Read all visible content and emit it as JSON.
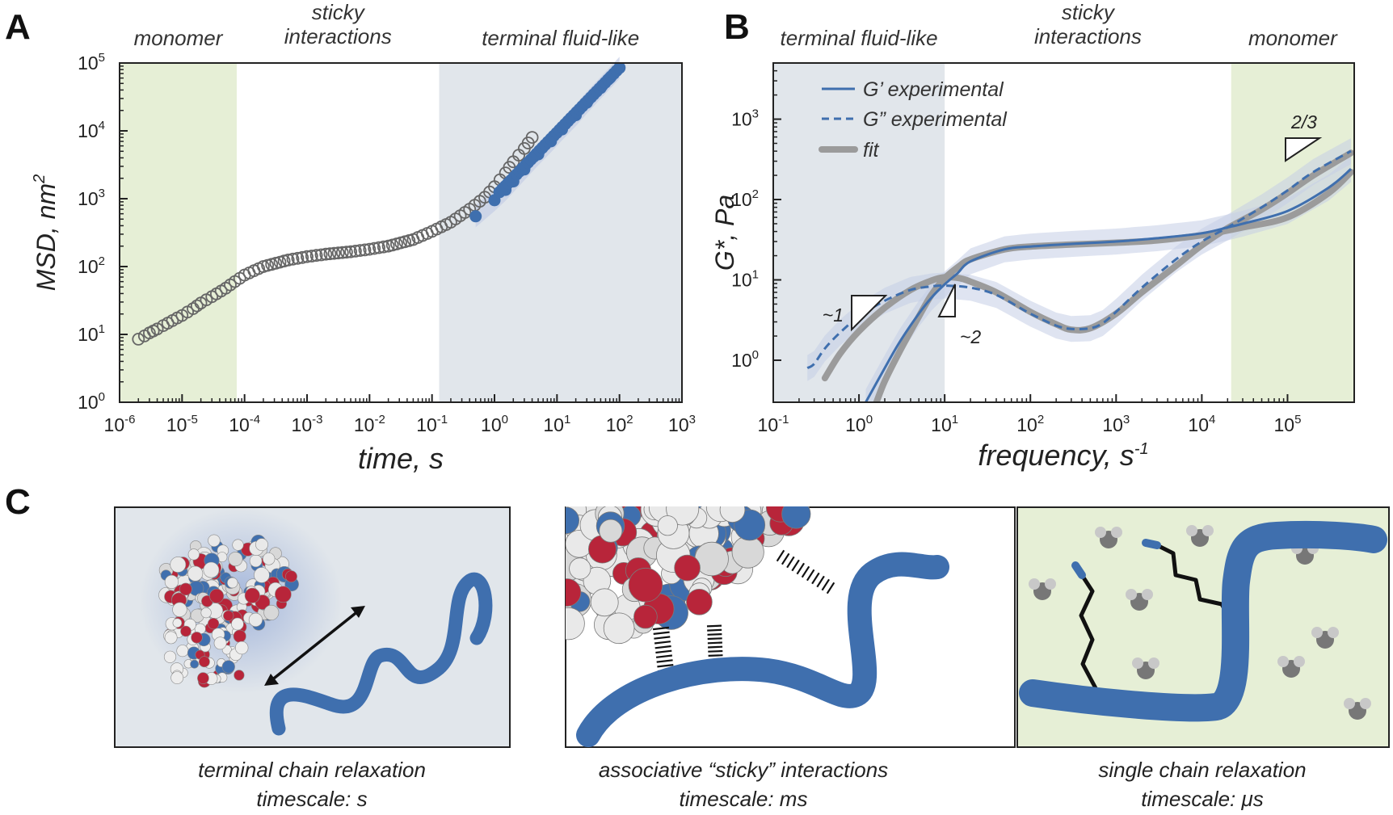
{
  "panels": {
    "a": "A",
    "b": "B",
    "c": "C"
  },
  "colors": {
    "green_region": "#e6efd6",
    "blue_region": "#e1e6eb",
    "gray_marker": "#666666",
    "blue_series": "#3f6fae",
    "fit_gray": "#9b9b9b",
    "band_blue": "#c5cde6",
    "red_protein": "#b8253a"
  },
  "chart_data": [
    {
      "id": "A",
      "type": "scatter",
      "xscale": "log",
      "yscale": "log",
      "xlabel": "time, s",
      "ylabel": "MSD, nm",
      "ylabel_sup": "2",
      "xlim": [
        1e-06,
        1000
      ],
      "ylim": [
        1,
        100000
      ],
      "xtick_exponents": [
        "-6",
        "-5",
        "-4",
        "-3",
        "-2",
        "-1",
        "0",
        "1",
        "2",
        "3"
      ],
      "ytick_exponents": [
        "0",
        "1",
        "2",
        "3",
        "4",
        "5"
      ],
      "tick_base": "10",
      "regions": [
        {
          "label": "monomer",
          "from": 1e-06,
          "to": 7.5e-05,
          "color": "green"
        },
        {
          "label": "sticky\ninteractions",
          "from": 7.5e-05,
          "to": 0.13,
          "color": "none"
        },
        {
          "label": "terminal fluid-like",
          "from": 0.13,
          "to": 1000,
          "color": "blue"
        }
      ],
      "series": [
        {
          "name": "gray open circles",
          "x": [
            2e-06,
            2.5e-06,
            3e-06,
            4e-06,
            5e-06,
            7e-06,
            1e-05,
            1.5e-05,
            2e-05,
            3e-05,
            5e-05,
            7e-05,
            0.0001,
            0.0002,
            0.0005,
            0.001,
            0.002,
            0.005,
            0.01,
            0.02,
            0.05,
            0.1,
            0.2,
            0.4,
            0.7,
            1,
            1.5,
            2,
            3,
            4
          ],
          "y": [
            8.5,
            9.5,
            10.5,
            12,
            13.5,
            16,
            19,
            24,
            29,
            36,
            48,
            60,
            75,
            100,
            125,
            140,
            152,
            165,
            180,
            200,
            250,
            330,
            450,
            700,
            1050,
            1500,
            2400,
            3500,
            5500,
            8000
          ]
        },
        {
          "name": "blue filled circles",
          "x": [
            0.5,
            1,
            1.5,
            2,
            3,
            5,
            8,
            12,
            20,
            30,
            50,
            70,
            100
          ],
          "y": [
            550,
            950,
            1350,
            1800,
            2700,
            4500,
            7000,
            10500,
            17000,
            26000,
            43000,
            60000,
            85000
          ]
        }
      ]
    },
    {
      "id": "B",
      "type": "line",
      "xscale": "log",
      "yscale": "log",
      "xlabel": "frequency, s",
      "xlabel_sup": "-1",
      "ylabel": "G*, Pa",
      "xlim": [
        0.1,
        600000
      ],
      "ylim": [
        0.3,
        5000
      ],
      "xtick_exponents": [
        "-1",
        "0",
        "1",
        "2",
        "3",
        "4",
        "5"
      ],
      "ytick_exponents": [
        "0",
        "1",
        "2",
        "3"
      ],
      "tick_base": "10",
      "regions": [
        {
          "label": "terminal fluid-like",
          "from": 0.1,
          "to": 10,
          "color": "blue"
        },
        {
          "label": "sticky\ninteractions",
          "from": 10,
          "to": 22000,
          "color": "none"
        },
        {
          "label": "monomer",
          "from": 22000,
          "to": 600000,
          "color": "green"
        }
      ],
      "legend": [
        {
          "label": "G’ experimental",
          "style": "solid-blue"
        },
        {
          "label": "G” experimental",
          "style": "dashed-blue"
        },
        {
          "label": "fit",
          "style": "thick-gray"
        }
      ],
      "series": [
        {
          "name": "G’ experimental",
          "x": [
            1.2,
            2,
            3,
            5,
            7,
            10,
            14,
            20,
            50,
            100,
            300,
            1000,
            3000,
            10000,
            20000,
            30000,
            100000,
            300000,
            550000
          ],
          "y": [
            0.3,
            0.8,
            1.7,
            3.8,
            6,
            8.8,
            12,
            17,
            24,
            26,
            28,
            30,
            33,
            38,
            45,
            50,
            72,
            140,
            240
          ]
        },
        {
          "name": "G” experimental",
          "x": [
            0.25,
            0.3,
            0.4,
            0.6,
            1,
            2,
            4,
            7,
            10,
            20,
            40,
            100,
            200,
            300,
            500,
            700,
            1000,
            2000,
            5000,
            10000,
            20000,
            50000,
            100000,
            200000,
            550000
          ],
          "y": [
            0.8,
            0.9,
            1.4,
            2.2,
            3.5,
            5.5,
            7.5,
            8.3,
            8.5,
            8,
            6.5,
            3.8,
            2.7,
            2.45,
            2.5,
            2.9,
            4,
            8,
            18,
            30,
            45,
            80,
            130,
            220,
            400
          ]
        },
        {
          "name": "fit G’",
          "x": [
            1.6,
            2,
            3,
            5,
            7,
            10,
            15,
            20,
            50,
            100,
            300,
            1000,
            3000,
            10000,
            30000,
            100000,
            300000,
            550000
          ],
          "y": [
            0.3,
            0.55,
            1.3,
            3.5,
            6.5,
            10.5,
            15,
            18,
            24,
            26,
            27.5,
            29,
            31,
            36,
            45,
            60,
            120,
            220
          ]
        },
        {
          "name": "fit G”",
          "x": [
            0.4,
            0.6,
            1,
            2,
            4,
            7,
            10,
            15,
            20,
            40,
            100,
            200,
            300,
            500,
            1000,
            2000,
            5000,
            10000,
            20000,
            50000,
            100000,
            200000,
            550000
          ],
          "y": [
            0.6,
            1.2,
            2.3,
            4.5,
            7.5,
            9.8,
            10.8,
            10.5,
            9.5,
            7,
            4,
            2.8,
            2.4,
            2.5,
            3.8,
            7,
            15,
            27,
            44,
            75,
            120,
            200,
            380
          ]
        }
      ],
      "slope_annotations": [
        "~1",
        "~2",
        "2/3"
      ]
    }
  ],
  "panel_c": {
    "captions": [
      {
        "line1": "terminal chain relaxation",
        "line2": "timescale: s"
      },
      {
        "line1": "associative “sticky” interactions",
        "line2": "timescale: ms"
      },
      {
        "line1": "single chain relaxation",
        "line2": "timescale: μs"
      }
    ]
  }
}
